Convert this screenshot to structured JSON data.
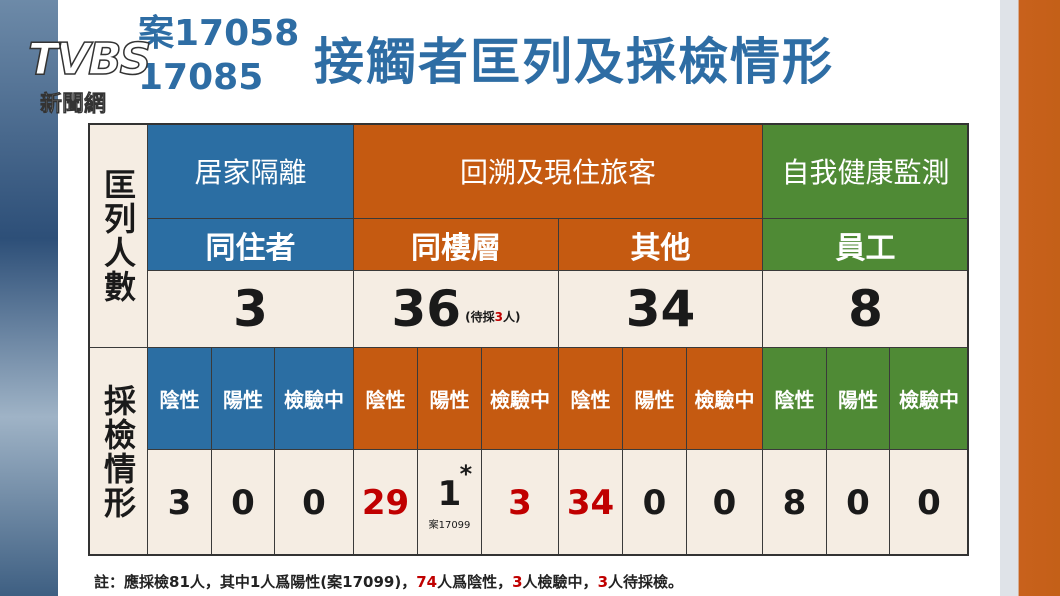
{
  "logo": {
    "brand": "TVBS",
    "sub": "新聞網"
  },
  "title": {
    "cases": [
      "案17058",
      "17085"
    ],
    "main": "接觸者匡列及採檢情形",
    "color": "#2e6da4"
  },
  "table": {
    "row_labels": [
      "匡列人數",
      "採檢情形"
    ],
    "groups": [
      {
        "name": "居家隔離",
        "color": "#2b6ea3",
        "subgroups": [
          {
            "name": "同住者",
            "count": 3,
            "tests": [
              "陰性",
              "陽性",
              "檢驗中"
            ],
            "results": [
              3,
              0,
              0
            ],
            "red": [
              false,
              false,
              false
            ]
          }
        ]
      },
      {
        "name": "回溯及現住旅客",
        "color": "#c55a11",
        "subgroups": [
          {
            "name": "同樓層",
            "count": 36,
            "count_note": {
              "parts": [
                "(待採",
                "3",
                "人)"
              ],
              "highlight": 1
            },
            "tests": [
              "陰性",
              "陽性",
              "檢驗中"
            ],
            "results": [
              29,
              1,
              3
            ],
            "red": [
              true,
              false,
              true
            ],
            "result_note": {
              "index": 1,
              "mark": "*",
              "label": "案17099"
            }
          },
          {
            "name": "其他",
            "count": 34,
            "tests": [
              "陰性",
              "陽性",
              "檢驗中"
            ],
            "results": [
              34,
              0,
              0
            ],
            "red": [
              true,
              false,
              false
            ]
          }
        ]
      },
      {
        "name": "自我健康監測",
        "color": "#4f8a35",
        "subgroups": [
          {
            "name": "員工",
            "count": 8,
            "tests": [
              "陰性",
              "陽性",
              "檢驗中"
            ],
            "results": [
              8,
              0,
              0
            ],
            "red": [
              false,
              false,
              false
            ]
          }
        ]
      }
    ]
  },
  "note": {
    "parts": [
      "註：應採檢81人，其中1人爲陽性(案17099)，",
      "74",
      "人爲陰性，",
      "3",
      "人檢驗中，",
      "3",
      "人待採檢。"
    ],
    "highlight": [
      1,
      3,
      5
    ]
  }
}
